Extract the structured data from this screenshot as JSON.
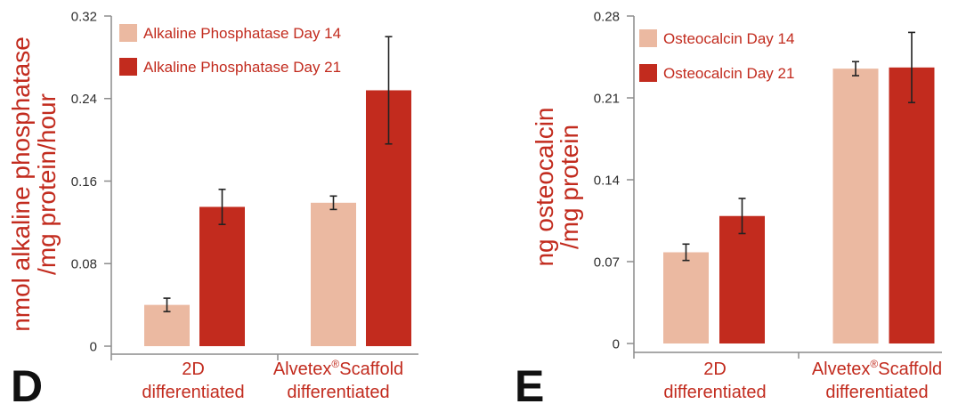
{
  "colors": {
    "accent_text": "#c22b1e",
    "axis": "#8c8c8c"
  },
  "chart_data": [
    {
      "type": "bar",
      "panel_label": "D",
      "ylabel": [
        "nmol alkaline phosphatase",
        "/mg protein/hour"
      ],
      "ylim": [
        0,
        0.32
      ],
      "yticks": [
        0,
        0.08,
        0.16,
        0.24,
        0.32
      ],
      "categories": [
        [
          "2D",
          "differentiated"
        ],
        [
          "Alvetex®Scaffold",
          "differentiated"
        ]
      ],
      "series": [
        {
          "name": "Alkaline Phosphatase Day 14",
          "color": "#ebb9a1",
          "values": [
            0.04,
            0.139
          ],
          "errors": [
            0.0065,
            0.0065
          ]
        },
        {
          "name": "Alkaline Phosphatase Day 21",
          "color": "#c22b1e",
          "values": [
            0.135,
            0.248
          ],
          "errors": [
            0.017,
            0.052
          ]
        }
      ],
      "error_bars": true,
      "legend": "top-left",
      "grid": false
    },
    {
      "type": "bar",
      "panel_label": "E",
      "ylabel": [
        "ng osteocalcin",
        "/mg protein"
      ],
      "ylim": [
        0,
        0.28
      ],
      "yticks": [
        0,
        0.07,
        0.14,
        0.21,
        0.28
      ],
      "categories": [
        [
          "2D",
          "differentiated"
        ],
        [
          "Alvetex®Scaffold",
          "differentiated"
        ]
      ],
      "series": [
        {
          "name": "Osteocalcin Day 14",
          "color": "#ebb9a1",
          "values": [
            0.078,
            0.235
          ],
          "errors": [
            0.007,
            0.006
          ]
        },
        {
          "name": "Osteocalcin Day 21",
          "color": "#c22b1e",
          "values": [
            0.109,
            0.236
          ],
          "errors": [
            0.015,
            0.03
          ]
        }
      ],
      "error_bars": true,
      "legend": "top-left",
      "grid": false
    }
  ]
}
